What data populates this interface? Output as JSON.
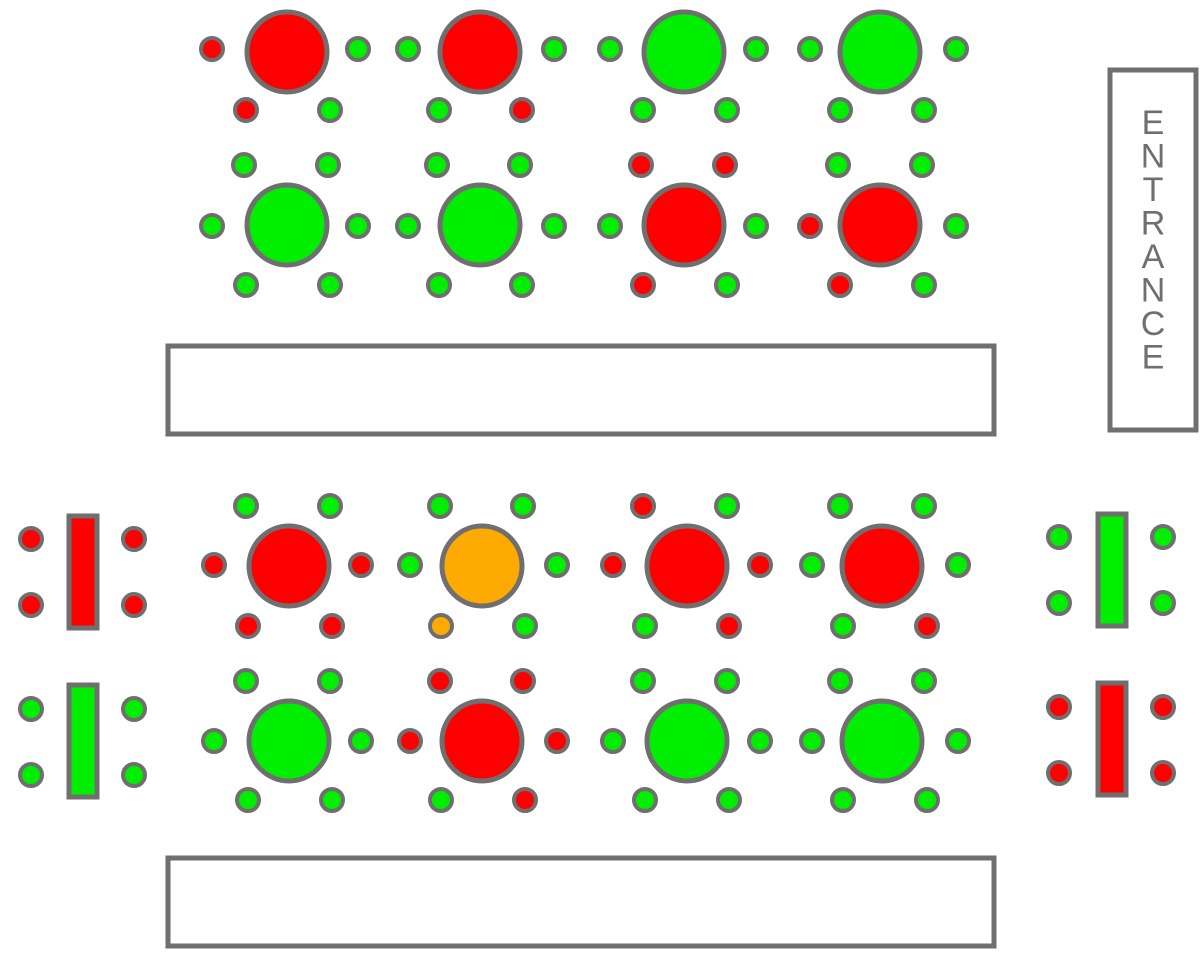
{
  "legend_colors": {
    "available": "#00ee00",
    "occupied": "#ff0000",
    "reserved": "#ffaa00",
    "outline": "#6f6f6f"
  },
  "entrance": {
    "label": "ENTRANCE"
  },
  "counters": [
    {
      "name": "upper-counter"
    },
    {
      "name": "lower-counter"
    }
  ],
  "tables": [
    {
      "name": "table-1",
      "type": "round",
      "status": "occupied",
      "seats": [
        "occupied",
        "available",
        "occupied",
        "available"
      ]
    },
    {
      "name": "table-2",
      "type": "round",
      "status": "occupied",
      "seats": [
        "available",
        "available",
        "available",
        "occupied"
      ]
    },
    {
      "name": "table-3",
      "type": "round",
      "status": "available",
      "seats": [
        "available",
        "available",
        "available",
        "available"
      ]
    },
    {
      "name": "table-4",
      "type": "round",
      "status": "available",
      "seats": [
        "available",
        "available",
        "available",
        "available"
      ]
    },
    {
      "name": "table-5",
      "type": "round",
      "status": "available",
      "seats": [
        "available",
        "available",
        "available",
        "available",
        "available",
        "available"
      ]
    },
    {
      "name": "table-6",
      "type": "round",
      "status": "available",
      "seats": [
        "available",
        "available",
        "available",
        "available",
        "available",
        "available"
      ]
    },
    {
      "name": "table-7",
      "type": "round",
      "status": "occupied",
      "seats": [
        "occupied",
        "occupied",
        "available",
        "available",
        "occupied",
        "available"
      ]
    },
    {
      "name": "table-8",
      "type": "round",
      "status": "occupied",
      "seats": [
        "available",
        "available",
        "occupied",
        "available",
        "occupied",
        "available"
      ]
    },
    {
      "name": "table-9",
      "type": "round",
      "status": "occupied",
      "seats": [
        "available",
        "available",
        "occupied",
        "occupied",
        "occupied",
        "occupied"
      ]
    },
    {
      "name": "table-10",
      "type": "round",
      "status": "reserved",
      "seats": [
        "available",
        "available",
        "available",
        "available",
        "reserved",
        "available"
      ]
    },
    {
      "name": "table-11",
      "type": "round",
      "status": "occupied",
      "seats": [
        "occupied",
        "available",
        "occupied",
        "occupied",
        "available",
        "occupied"
      ]
    },
    {
      "name": "table-12",
      "type": "round",
      "status": "occupied",
      "seats": [
        "available",
        "available",
        "available",
        "available",
        "available",
        "occupied"
      ]
    },
    {
      "name": "table-13",
      "type": "round",
      "status": "available",
      "seats": [
        "available",
        "available",
        "available",
        "available",
        "available",
        "available"
      ]
    },
    {
      "name": "table-14",
      "type": "round",
      "status": "occupied",
      "seats": [
        "occupied",
        "occupied",
        "occupied",
        "occupied",
        "available",
        "occupied"
      ]
    },
    {
      "name": "table-15",
      "type": "round",
      "status": "available",
      "seats": [
        "available",
        "available",
        "available",
        "available",
        "available",
        "available"
      ]
    },
    {
      "name": "table-16",
      "type": "round",
      "status": "available",
      "seats": [
        "available",
        "available",
        "available",
        "available",
        "available",
        "available"
      ]
    },
    {
      "name": "table-17",
      "type": "rect",
      "status": "occupied",
      "seats": [
        "occupied",
        "occupied",
        "occupied",
        "occupied"
      ]
    },
    {
      "name": "table-18",
      "type": "rect",
      "status": "available",
      "seats": [
        "available",
        "available",
        "available",
        "available"
      ]
    },
    {
      "name": "table-19",
      "type": "rect",
      "status": "available",
      "seats": [
        "available",
        "available",
        "available",
        "available"
      ]
    },
    {
      "name": "table-20",
      "type": "rect",
      "status": "occupied",
      "seats": [
        "occupied",
        "occupied",
        "occupied",
        "occupied"
      ]
    }
  ]
}
